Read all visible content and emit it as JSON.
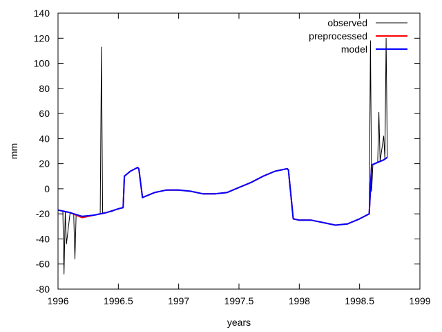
{
  "chart_data": {
    "type": "line",
    "xlabel": "years",
    "ylabel": "mm",
    "xlim": [
      1996,
      1999
    ],
    "ylim": [
      -80,
      140
    ],
    "xticks": [
      1996,
      1996.5,
      1997,
      1997.5,
      1998,
      1998.5,
      1999
    ],
    "xtick_labels": [
      "1996",
      "1996.5",
      "1997",
      "1997.5",
      "1998",
      "1998.5",
      "1999"
    ],
    "yticks": [
      -80,
      -60,
      -40,
      -20,
      0,
      20,
      40,
      60,
      80,
      100,
      120,
      140
    ],
    "ytick_labels": [
      "-80",
      "-60",
      "-40",
      "-20",
      "0",
      "20",
      "40",
      "60",
      "80",
      "100",
      "120",
      "140"
    ],
    "grid": false,
    "legend_position": "top-right",
    "series": [
      {
        "name": "observed",
        "color": "#000000",
        "x": [
          1996.0,
          1996.04,
          1996.05,
          1996.06,
          1996.07,
          1996.1,
          1996.13,
          1996.14,
          1996.15,
          1996.2,
          1996.25,
          1996.3,
          1996.35,
          1996.36,
          1996.37,
          1996.4,
          1996.45,
          1996.5,
          1996.54,
          1996.55,
          1996.6,
          1996.66,
          1996.67,
          1996.7,
          1996.8,
          1996.9,
          1997.0,
          1997.1,
          1997.2,
          1997.3,
          1997.4,
          1997.5,
          1997.6,
          1997.7,
          1997.8,
          1997.9,
          1997.91,
          1997.95,
          1998.0,
          1998.1,
          1998.2,
          1998.3,
          1998.4,
          1998.5,
          1998.58,
          1998.59,
          1998.6,
          1998.61,
          1998.65,
          1998.66,
          1998.67,
          1998.7,
          1998.71,
          1998.72,
          1998.73
        ],
        "y": [
          -17,
          -18,
          -68,
          -18,
          -44,
          -19,
          -20,
          -56,
          -21,
          -23,
          -22,
          -21,
          -20,
          113,
          -20,
          -19,
          -18,
          -16,
          -15,
          10,
          14,
          17,
          16,
          -7,
          -3,
          -1,
          -1,
          -2,
          -4,
          -4,
          -3,
          1,
          5,
          10,
          14,
          16,
          15,
          -24,
          -25,
          -25,
          -27,
          -29,
          -28,
          -24,
          -20,
          118,
          -2,
          19,
          21,
          61,
          22,
          42,
          24,
          120,
          25
        ]
      },
      {
        "name": "preprocessed",
        "color": "#ff0000",
        "x": [
          1996.0,
          1996.1,
          1996.2,
          1996.3,
          1996.4,
          1996.5,
          1996.54,
          1996.55,
          1996.6,
          1996.66,
          1996.67,
          1996.7,
          1996.8,
          1996.9,
          1997.0,
          1997.1,
          1997.2,
          1997.3,
          1997.4,
          1997.5,
          1997.6,
          1997.7,
          1997.8,
          1997.9,
          1997.91,
          1997.95,
          1998.0,
          1998.1,
          1998.2,
          1998.3,
          1998.4,
          1998.5,
          1998.58,
          1998.6,
          1998.65,
          1998.7,
          1998.73
        ],
        "y": [
          -17,
          -19,
          -23,
          -21,
          -19,
          -16,
          -15,
          10,
          14,
          17,
          16,
          -7,
          -3,
          -1,
          -1,
          -2,
          -4,
          -4,
          -3,
          1,
          5,
          10,
          14,
          16,
          15,
          -24,
          -25,
          -25,
          -27,
          -29,
          -28,
          -24,
          -20,
          19,
          21,
          23,
          25
        ]
      },
      {
        "name": "model",
        "color": "#0000ff",
        "x": [
          1996.0,
          1996.1,
          1996.2,
          1996.3,
          1996.4,
          1996.5,
          1996.54,
          1996.55,
          1996.6,
          1996.66,
          1996.67,
          1996.7,
          1996.8,
          1996.9,
          1997.0,
          1997.1,
          1997.2,
          1997.3,
          1997.4,
          1997.5,
          1997.6,
          1997.7,
          1997.8,
          1997.9,
          1997.91,
          1997.95,
          1998.0,
          1998.1,
          1998.2,
          1998.3,
          1998.4,
          1998.5,
          1998.58,
          1998.6,
          1998.65,
          1998.7,
          1998.73
        ],
        "y": [
          -17,
          -19,
          -22,
          -21,
          -19,
          -16,
          -15,
          10,
          14,
          17,
          16,
          -7,
          -3,
          -1,
          -1,
          -2,
          -4,
          -4,
          -3,
          1,
          5,
          10,
          14,
          16,
          15,
          -24,
          -25,
          -25,
          -27,
          -29,
          -28,
          -24,
          -20,
          19,
          21,
          23,
          25
        ]
      }
    ]
  }
}
